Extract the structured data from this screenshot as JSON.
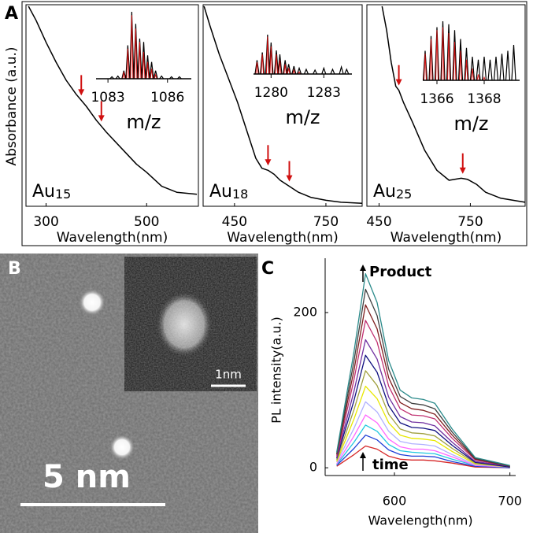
{
  "panel_labels": [
    "A",
    "B",
    "C"
  ],
  "micrograph": {
    "scale_bar": "5 nm",
    "inset_scale_bar": "1nm"
  },
  "chart_data": [
    {
      "type": "line",
      "xlabel": "Wavelength(nm)",
      "ylabel": "Absorbance (a.u.)",
      "label": {
        "element": "Au",
        "subscript": "15"
      },
      "x": [
        265,
        280,
        300,
        320,
        340,
        360,
        370,
        380,
        400,
        420,
        450,
        480,
        500,
        530,
        560,
        600
      ],
      "values": [
        1.0,
        0.93,
        0.82,
        0.72,
        0.63,
        0.56,
        0.53,
        0.5,
        0.43,
        0.37,
        0.29,
        0.21,
        0.17,
        0.1,
        0.07,
        0.06
      ],
      "color": "#000000",
      "xlim": [
        260,
        603
      ],
      "xticks": [
        300,
        500
      ],
      "ylim": [
        0,
        1
      ],
      "arrows_x": [
        370,
        410
      ],
      "arrow_color": "#d01010",
      "inset": {
        "xlabel": "m/z",
        "xlim": [
          1082.4,
          1087.2
        ],
        "xticks": [
          1083,
          1086
        ],
        "ylim": [
          0,
          1
        ],
        "x": [
          1083.2,
          1083.5,
          1083.8,
          1084.0,
          1084.2,
          1084.4,
          1084.6,
          1084.8,
          1085.0,
          1085.2,
          1085.4,
          1085.7,
          1086.2,
          1086.6
        ],
        "series": [
          {
            "color": "#000000",
            "values": [
              0.03,
              0.04,
              0.12,
              0.5,
              1.0,
              0.82,
              0.6,
              0.55,
              0.35,
              0.25,
              0.12,
              0.04,
              0.03,
              0.03
            ]
          },
          {
            "color": "#d01010",
            "values": [
              0,
              0,
              0.1,
              0.45,
              0.95,
              0.75,
              0.55,
              0.4,
              0.25,
              0.15,
              0.06,
              0,
              0,
              0
            ]
          }
        ]
      }
    },
    {
      "type": "line",
      "xlabel": "Wavelength(nm)",
      "label": {
        "element": "Au",
        "subscript": "18"
      },
      "x": [
        350,
        370,
        400,
        430,
        460,
        490,
        520,
        540,
        560,
        580,
        600,
        630,
        660,
        700,
        750,
        800,
        870
      ],
      "values": [
        1.0,
        0.9,
        0.76,
        0.64,
        0.52,
        0.38,
        0.24,
        0.19,
        0.18,
        0.16,
        0.13,
        0.1,
        0.07,
        0.045,
        0.03,
        0.02,
        0.015
      ],
      "color": "#000000",
      "xlim": [
        347,
        869
      ],
      "xticks": [
        450,
        750
      ],
      "ylim": [
        0,
        1
      ],
      "arrows_x": [
        560,
        630
      ],
      "arrow_color": "#d01010",
      "inset": {
        "xlabel": "m/z",
        "xlim": [
          1279,
          1284.6
        ],
        "xticks": [
          1280,
          1283
        ],
        "ylim": [
          0,
          1
        ],
        "x": [
          1279.2,
          1279.5,
          1279.8,
          1280.0,
          1280.3,
          1280.5,
          1280.8,
          1281.0,
          1281.3,
          1281.6,
          1282.0,
          1282.5,
          1283.0,
          1283.5,
          1284.0,
          1284.3
        ],
        "series": [
          {
            "color": "#000000",
            "values": [
              0.35,
              0.55,
              1.0,
              0.8,
              0.6,
              0.5,
              0.35,
              0.25,
              0.2,
              0.15,
              0.12,
              0.1,
              0.15,
              0.12,
              0.18,
              0.12
            ]
          },
          {
            "color": "#d01010",
            "values": [
              0.3,
              0.5,
              0.95,
              0.7,
              0.5,
              0.35,
              0.25,
              0.15,
              0.1,
              0.05,
              0,
              0,
              0,
              0,
              0,
              0
            ]
          }
        ]
      }
    },
    {
      "type": "line",
      "xlabel": "Wavelength(nm)",
      "label": {
        "element": "Au",
        "subscript": "25"
      },
      "x": [
        460,
        475,
        490,
        505,
        515,
        530,
        560,
        600,
        640,
        680,
        720,
        740,
        770,
        800,
        850,
        930
      ],
      "values": [
        1.0,
        0.88,
        0.72,
        0.6,
        0.58,
        0.52,
        0.42,
        0.28,
        0.18,
        0.13,
        0.14,
        0.135,
        0.11,
        0.07,
        0.04,
        0.02
      ],
      "color": "#000000",
      "xlim": [
        410,
        930
      ],
      "xticks": [
        450,
        750
      ],
      "ylim": [
        0,
        1
      ],
      "arrows_x": [
        515,
        725
      ],
      "arrow_color": "#d01010",
      "inset": {
        "xlabel": "m/z",
        "xlim": [
          1365.4,
          1369.5
        ],
        "xticks": [
          1366,
          1368
        ],
        "ylim": [
          0,
          1
        ],
        "x": [
          1365.5,
          1365.75,
          1366.0,
          1366.25,
          1366.5,
          1366.75,
          1367.0,
          1367.25,
          1367.5,
          1367.75,
          1368.0,
          1368.25,
          1368.5,
          1368.75,
          1369.0,
          1369.25
        ],
        "series": [
          {
            "color": "#000000",
            "values": [
              0.5,
              0.75,
              0.9,
              1.0,
              0.95,
              0.85,
              0.7,
              0.55,
              0.4,
              0.35,
              0.4,
              0.35,
              0.4,
              0.45,
              0.5,
              0.6
            ]
          },
          {
            "color": "#d01010",
            "values": [
              0.45,
              0.7,
              0.85,
              0.9,
              0.8,
              0.65,
              0.5,
              0.35,
              0.2,
              0.1,
              0.05,
              0,
              0,
              0,
              0,
              0
            ]
          }
        ]
      }
    },
    {
      "type": "line",
      "xlabel": "Wavelength(nm)",
      "ylabel": "PL intensity(a.u.)",
      "annotations": {
        "top": "Product",
        "bottom": "time"
      },
      "x": [
        550,
        565,
        575,
        585,
        595,
        605,
        615,
        625,
        635,
        650,
        670,
        700
      ],
      "xlim": [
        540,
        705
      ],
      "xticks": [
        600,
        700
      ],
      "ylim": [
        -10,
        270
      ],
      "yticks": [
        0,
        200
      ],
      "series": [
        {
          "color": "#d62728",
          "values": [
            2,
            17,
            28,
            24,
            15,
            11,
            10,
            10,
            9,
            6,
            1,
            0
          ]
        },
        {
          "color": "#1f3fd6",
          "values": [
            3,
            25,
            42,
            36,
            23,
            17,
            15,
            15,
            14,
            8,
            2,
            0
          ]
        },
        {
          "color": "#22c8e0",
          "values": [
            4,
            33,
            55,
            47,
            30,
            22,
            20,
            19,
            18,
            11,
            3,
            1
          ]
        },
        {
          "color": "#ff66ff",
          "values": [
            5,
            41,
            68,
            58,
            37,
            27,
            24,
            24,
            22,
            14,
            3,
            1
          ]
        },
        {
          "color": "#b0b0ff",
          "values": [
            7,
            51,
            85,
            72,
            47,
            34,
            31,
            30,
            28,
            17,
            4,
            1
          ]
        },
        {
          "color": "#e8e800",
          "values": [
            8,
            63,
            105,
            89,
            58,
            42,
            38,
            37,
            35,
            21,
            5,
            1
          ]
        },
        {
          "color": "#a0a040",
          "values": [
            10,
            75,
            125,
            106,
            69,
            50,
            45,
            44,
            41,
            25,
            6,
            1
          ]
        },
        {
          "color": "#101080",
          "values": [
            12,
            87,
            145,
            123,
            80,
            58,
            52,
            51,
            48,
            29,
            7,
            1
          ]
        },
        {
          "color": "#7030a0",
          "values": [
            13,
            99,
            165,
            140,
            91,
            66,
            59,
            58,
            54,
            33,
            8,
            2
          ]
        },
        {
          "color": "#c03070",
          "values": [
            15,
            114,
            190,
            162,
            105,
            76,
            68,
            67,
            63,
            38,
            10,
            2
          ]
        },
        {
          "color": "#802020",
          "values": [
            17,
            126,
            210,
            179,
            116,
            84,
            76,
            74,
            69,
            42,
            11,
            2
          ]
        },
        {
          "color": "#404040",
          "values": [
            18,
            138,
            230,
            196,
            127,
            92,
            83,
            81,
            76,
            46,
            12,
            2
          ]
        },
        {
          "color": "#2a8a8a",
          "values": [
            20,
            150,
            250,
            213,
            138,
            100,
            90,
            88,
            83,
            50,
            13,
            3
          ]
        }
      ]
    }
  ]
}
